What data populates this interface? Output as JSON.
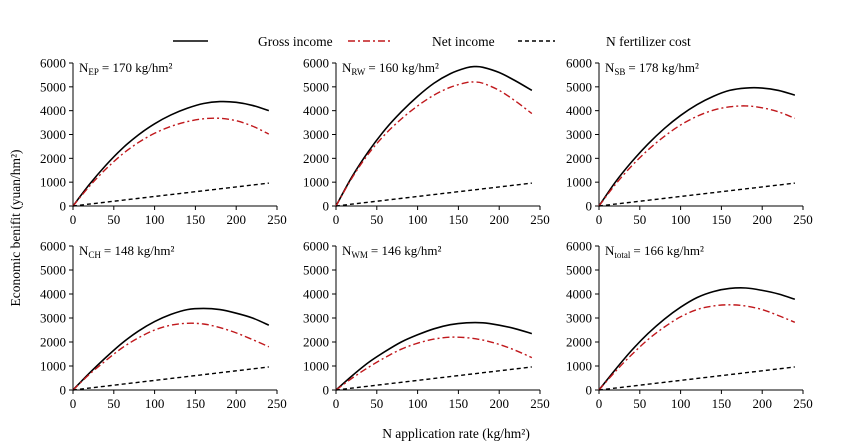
{
  "chart_data": {
    "type": "line",
    "x_axis_title": "N application rate (kg/hm²)",
    "y_axis_title": "Economic benifit (yuan/hm²)",
    "legend": [
      {
        "name": "Gross income",
        "color": "#000000",
        "style": "solid"
      },
      {
        "name": "Net income",
        "color": "#c0181c",
        "style": "dash-dot"
      },
      {
        "name": "N fertilizer cost",
        "color": "#000000",
        "style": "dashed"
      }
    ],
    "xlim": [
      0,
      250
    ],
    "ylim": [
      0,
      6000
    ],
    "x_ticks": [
      "0",
      "50",
      "100",
      "150",
      "200",
      "250"
    ],
    "y_ticks": [
      "0",
      "1000",
      "2000",
      "3000",
      "4000",
      "5000",
      "6000"
    ],
    "panels": [
      {
        "label_main": "N",
        "label_sub": "EP",
        "label_value": "= 170 kg/hm²",
        "x": [
          0,
          20,
          40,
          60,
          80,
          100,
          120,
          140,
          160,
          180,
          200,
          220,
          240
        ],
        "gross": [
          0,
          900,
          1700,
          2400,
          2980,
          3450,
          3820,
          4100,
          4300,
          4380,
          4350,
          4220,
          4000
        ],
        "net": [
          0,
          820,
          1540,
          2160,
          2660,
          3050,
          3340,
          3540,
          3660,
          3680,
          3580,
          3350,
          3020
        ],
        "cost": [
          0,
          80,
          160,
          240,
          320,
          400,
          480,
          560,
          640,
          720,
          800,
          880,
          960
        ]
      },
      {
        "label_main": "N",
        "label_sub": "RW",
        "label_value": "= 160 kg/hm²",
        "x": [
          0,
          20,
          40,
          60,
          80,
          100,
          120,
          140,
          160,
          170,
          180,
          200,
          220,
          240
        ],
        "gross": [
          0,
          1250,
          2300,
          3200,
          3950,
          4600,
          5150,
          5550,
          5800,
          5850,
          5820,
          5600,
          5250,
          4850
        ],
        "net": [
          0,
          1200,
          2200,
          3000,
          3650,
          4200,
          4650,
          4980,
          5180,
          5200,
          5150,
          4850,
          4400,
          3880
        ],
        "cost": [
          0,
          80,
          160,
          240,
          320,
          400,
          480,
          560,
          640,
          680,
          720,
          800,
          880,
          960
        ]
      },
      {
        "label_main": "N",
        "label_sub": "SB",
        "label_value": "= 178 kg/hm²",
        "x": [
          0,
          20,
          40,
          60,
          80,
          100,
          120,
          140,
          160,
          180,
          200,
          220,
          240
        ],
        "gross": [
          0,
          1000,
          1850,
          2600,
          3250,
          3800,
          4250,
          4600,
          4850,
          4950,
          4950,
          4850,
          4650
        ],
        "net": [
          0,
          900,
          1680,
          2350,
          2920,
          3400,
          3760,
          4020,
          4160,
          4200,
          4120,
          3950,
          3680
        ],
        "cost": [
          0,
          80,
          160,
          240,
          320,
          400,
          480,
          560,
          640,
          720,
          800,
          880,
          960
        ]
      },
      {
        "label_main": "N",
        "label_sub": "CH",
        "label_value": "= 148 kg/hm²",
        "x": [
          0,
          20,
          40,
          60,
          80,
          100,
          120,
          140,
          160,
          180,
          200,
          220,
          240
        ],
        "gross": [
          0,
          700,
          1350,
          1950,
          2450,
          2850,
          3150,
          3350,
          3400,
          3350,
          3200,
          3000,
          2700
        ],
        "net": [
          0,
          650,
          1220,
          1750,
          2170,
          2500,
          2700,
          2780,
          2750,
          2600,
          2380,
          2100,
          1800
        ],
        "cost": [
          0,
          80,
          160,
          240,
          320,
          400,
          480,
          560,
          640,
          720,
          800,
          880,
          960
        ]
      },
      {
        "label_main": "N",
        "label_sub": "WM",
        "label_value": "= 146 kg/hm²",
        "x": [
          0,
          20,
          40,
          60,
          80,
          100,
          120,
          140,
          160,
          180,
          200,
          220,
          240
        ],
        "gross": [
          0,
          600,
          1150,
          1600,
          2000,
          2300,
          2550,
          2720,
          2800,
          2800,
          2700,
          2550,
          2350
        ],
        "net": [
          0,
          500,
          950,
          1350,
          1700,
          1950,
          2120,
          2200,
          2180,
          2080,
          1900,
          1650,
          1350
        ],
        "cost": [
          0,
          80,
          160,
          240,
          320,
          400,
          480,
          560,
          640,
          720,
          800,
          880,
          960
        ]
      },
      {
        "label_main": "N",
        "label_sub": "total",
        "label_value": "= 166 kg/hm²",
        "x": [
          0,
          20,
          40,
          60,
          80,
          100,
          120,
          140,
          160,
          180,
          200,
          220,
          240
        ],
        "gross": [
          0,
          850,
          1650,
          2350,
          2950,
          3450,
          3850,
          4100,
          4230,
          4250,
          4150,
          4000,
          3780
        ],
        "net": [
          0,
          770,
          1470,
          2100,
          2620,
          3050,
          3350,
          3500,
          3550,
          3500,
          3350,
          3100,
          2820
        ],
        "cost": [
          0,
          80,
          160,
          240,
          320,
          400,
          480,
          560,
          640,
          720,
          800,
          880,
          960
        ]
      }
    ]
  }
}
